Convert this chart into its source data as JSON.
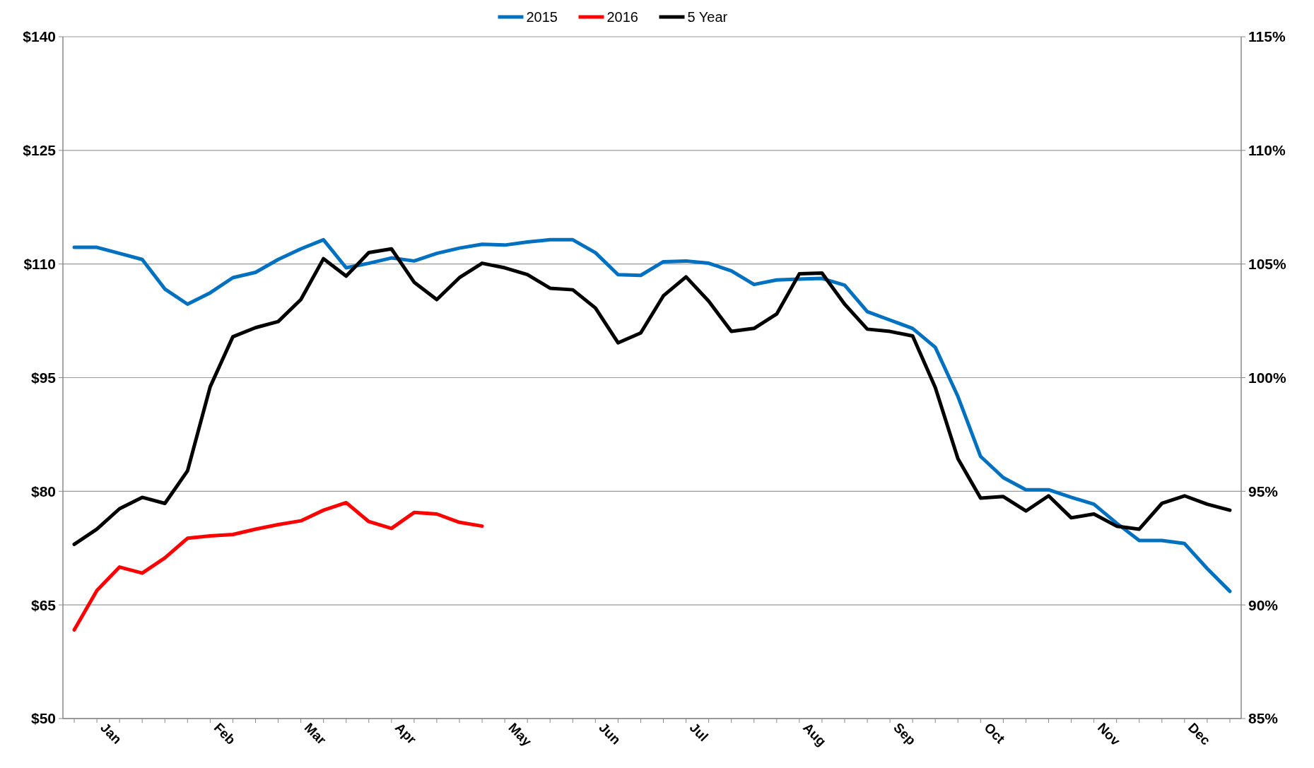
{
  "chart_data": {
    "type": "line",
    "categories": [
      null,
      "Jan",
      null,
      null,
      null,
      null,
      "Feb",
      null,
      null,
      null,
      "Mar",
      null,
      null,
      null,
      "Apr",
      null,
      null,
      null,
      null,
      "May",
      null,
      null,
      null,
      "Jun",
      null,
      null,
      null,
      "Jul",
      null,
      null,
      null,
      null,
      "Aug",
      null,
      null,
      null,
      "Sep",
      null,
      null,
      null,
      "Oct",
      null,
      null,
      null,
      null,
      "Nov",
      null,
      null,
      null,
      "Dec",
      null,
      null
    ],
    "series": [
      {
        "name": "2015",
        "color": "#0070c0",
        "values": [
          112.2,
          112.2,
          111.4,
          110.6,
          106.7,
          104.7,
          106.2,
          108.2,
          108.9,
          110.6,
          112.0,
          113.2,
          109.5,
          110.1,
          110.8,
          110.4,
          111.4,
          112.1,
          112.6,
          112.5,
          112.9,
          113.2,
          113.2,
          111.5,
          108.6,
          108.5,
          110.3,
          110.4,
          110.1,
          109.1,
          107.3,
          107.9,
          108.0,
          108.1,
          107.2,
          103.7,
          102.6,
          101.5,
          99.0,
          92.5,
          84.6,
          81.8,
          80.2,
          80.2,
          79.2,
          78.3,
          75.8,
          73.5,
          73.5,
          73.1,
          69.8,
          66.8
        ]
      },
      {
        "name": "2016",
        "color": "#ff0000",
        "values": [
          61.7,
          66.9,
          70.0,
          69.2,
          71.2,
          73.8,
          74.1,
          74.3,
          75.0,
          75.6,
          76.1,
          77.5,
          78.5,
          76.0,
          75.1,
          77.2,
          77.0,
          75.9,
          75.4,
          null,
          null,
          null,
          null,
          null,
          null,
          null,
          null,
          null,
          null,
          null,
          null,
          null,
          null,
          null,
          null,
          null,
          null,
          null,
          null,
          null,
          null,
          null,
          null,
          null,
          null,
          null,
          null,
          null,
          null,
          null,
          null,
          null
        ]
      },
      {
        "name": "5 Year",
        "color": "#000000",
        "values": [
          73.0,
          75.0,
          77.7,
          79.2,
          78.4,
          82.7,
          93.8,
          100.4,
          101.6,
          102.4,
          105.3,
          110.7,
          108.4,
          111.5,
          112.0,
          107.6,
          105.3,
          108.2,
          110.1,
          109.5,
          108.6,
          106.8,
          106.6,
          104.2,
          99.6,
          100.9,
          105.8,
          108.3,
          105.1,
          101.1,
          101.5,
          103.4,
          108.7,
          108.8,
          104.7,
          101.4,
          101.1,
          100.5,
          93.7,
          84.3,
          79.1,
          79.3,
          77.4,
          79.4,
          76.5,
          77.0,
          75.4,
          75.0,
          78.4,
          79.4,
          78.3,
          77.5
        ]
      }
    ],
    "ylim": [
      50,
      140
    ],
    "yticks": [
      {
        "value": 50,
        "label": "$50"
      },
      {
        "value": 65,
        "label": "$65"
      },
      {
        "value": 80,
        "label": "$80"
      },
      {
        "value": 95,
        "label": "$95"
      },
      {
        "value": 110,
        "label": "$110"
      },
      {
        "value": 125,
        "label": "$125"
      },
      {
        "value": 140,
        "label": "$140"
      }
    ],
    "y2lim": [
      85,
      115
    ],
    "y2ticks": [
      {
        "value": 85,
        "label": "85%"
      },
      {
        "value": 90,
        "label": "90%"
      },
      {
        "value": 95,
        "label": "95%"
      },
      {
        "value": 100,
        "label": "100%"
      },
      {
        "value": 105,
        "label": "105%"
      },
      {
        "value": 110,
        "label": "110%"
      },
      {
        "value": 115,
        "label": "115%"
      }
    ],
    "grid": "y",
    "legend": "top",
    "marker": "none",
    "line_style": "solid"
  }
}
